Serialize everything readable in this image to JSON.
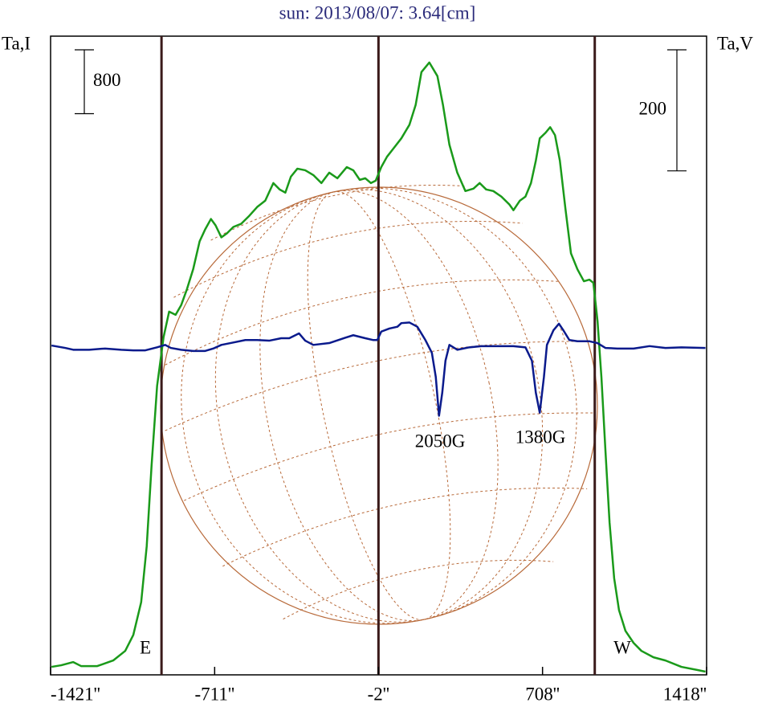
{
  "chart_data": {
    "type": "line",
    "title": "sun: 2013/08/07: 3.64[cm]",
    "y_label": "Ta,I",
    "y2_label": "Ta,V",
    "xlim": [
      -1421,
      1418
    ],
    "ylim": [
      0,
      8000
    ],
    "y2lim": [
      -540,
      515
    ],
    "xticks": [
      {
        "value": -1421,
        "label": "-1421''"
      },
      {
        "value": -711,
        "label": "-711''"
      },
      {
        "value": -2,
        "label": "-2''"
      },
      {
        "value": 708,
        "label": "708''"
      },
      {
        "value": 1418,
        "label": "1418''"
      }
    ],
    "vlines": [
      -941,
      -2,
      934
    ],
    "vline_color": "#3a1a1a",
    "scale_bars": [
      {
        "value": 800,
        "axis": "y"
      },
      {
        "value": 200,
        "axis": "y2"
      }
    ],
    "annotations": [
      "E",
      "W",
      "2050G",
      "1380G"
    ],
    "series": [
      {
        "name": "I",
        "color": "#1a9a1a",
        "axis": "y",
        "x": [
          -1417,
          -1375,
          -1323,
          -1289,
          -1219,
          -1150,
          -1098,
          -1063,
          -1029,
          -1005,
          -984,
          -960,
          -932,
          -908,
          -880,
          -856,
          -831,
          -804,
          -776,
          -752,
          -727,
          -707,
          -682,
          -658,
          -630,
          -596,
          -561,
          -527,
          -492,
          -457,
          -430,
          -405,
          -381,
          -353,
          -319,
          -284,
          -249,
          -215,
          -180,
          -139,
          -111,
          -83,
          -59,
          -35,
          -14,
          10,
          35,
          62,
          97,
          132,
          159,
          184,
          218,
          253,
          277,
          305,
          339,
          374,
          409,
          436,
          464,
          495,
          530,
          565,
          582,
          610,
          634,
          658,
          679,
          696,
          721,
          741,
          762,
          783,
          807,
          831,
          859,
          887,
          911,
          928,
          946,
          963,
          980,
          998,
          1018,
          1039,
          1067,
          1102,
          1136,
          1188,
          1240,
          1309,
          1379,
          1413
        ],
        "values": [
          100,
          120,
          160,
          110,
          110,
          180,
          300,
          500,
          910,
          1610,
          2620,
          3620,
          4230,
          4550,
          4510,
          4630,
          4830,
          5080,
          5430,
          5580,
          5710,
          5630,
          5480,
          5530,
          5610,
          5650,
          5750,
          5860,
          5940,
          6160,
          6080,
          6040,
          6240,
          6340,
          6320,
          6260,
          6160,
          6290,
          6220,
          6360,
          6320,
          6200,
          6220,
          6160,
          6190,
          6360,
          6490,
          6590,
          6720,
          6890,
          7140,
          7550,
          7670,
          7500,
          7140,
          6640,
          6290,
          6060,
          6090,
          6160,
          6080,
          6060,
          5990,
          5890,
          5820,
          5940,
          5990,
          6160,
          6440,
          6720,
          6790,
          6860,
          6760,
          6440,
          5840,
          5280,
          5080,
          4930,
          4950,
          4910,
          4430,
          3720,
          2820,
          1910,
          1210,
          810,
          550,
          400,
          300,
          220,
          180,
          100,
          60,
          40
        ]
      },
      {
        "name": "V",
        "color": "#0a1a8c",
        "axis": "y2",
        "x": [
          -1417,
          -1358,
          -1323,
          -1254,
          -1185,
          -1115,
          -1063,
          -1011,
          -960,
          -925,
          -901,
          -856,
          -804,
          -752,
          -717,
          -682,
          -630,
          -578,
          -527,
          -475,
          -423,
          -388,
          -346,
          -319,
          -284,
          -215,
          -145,
          -111,
          -59,
          -24,
          -7,
          10,
          45,
          80,
          97,
          132,
          166,
          201,
          229,
          246,
          260,
          274,
          288,
          305,
          339,
          391,
          443,
          513,
          582,
          634,
          662,
          679,
          696,
          714,
          727,
          755,
          779,
          800,
          824,
          859,
          911,
          946,
          980,
          1032,
          1102,
          1171,
          1240,
          1309,
          1413
        ],
        "values": [
          4,
          0,
          -3,
          -3,
          -1,
          -3,
          -4,
          -4,
          1,
          5,
          0,
          -3,
          -5,
          -5,
          -1,
          5,
          9,
          13,
          13,
          12,
          16,
          16,
          24,
          12,
          5,
          8,
          17,
          21,
          16,
          13,
          13,
          27,
          32,
          35,
          41,
          42,
          35,
          13,
          -8,
          -48,
          -112,
          -74,
          -21,
          5,
          -3,
          1,
          3,
          3,
          3,
          1,
          -21,
          -74,
          -107,
          -48,
          5,
          29,
          40,
          28,
          13,
          11,
          11,
          8,
          0,
          -1,
          -1,
          3,
          0,
          1,
          0
        ]
      }
    ]
  }
}
